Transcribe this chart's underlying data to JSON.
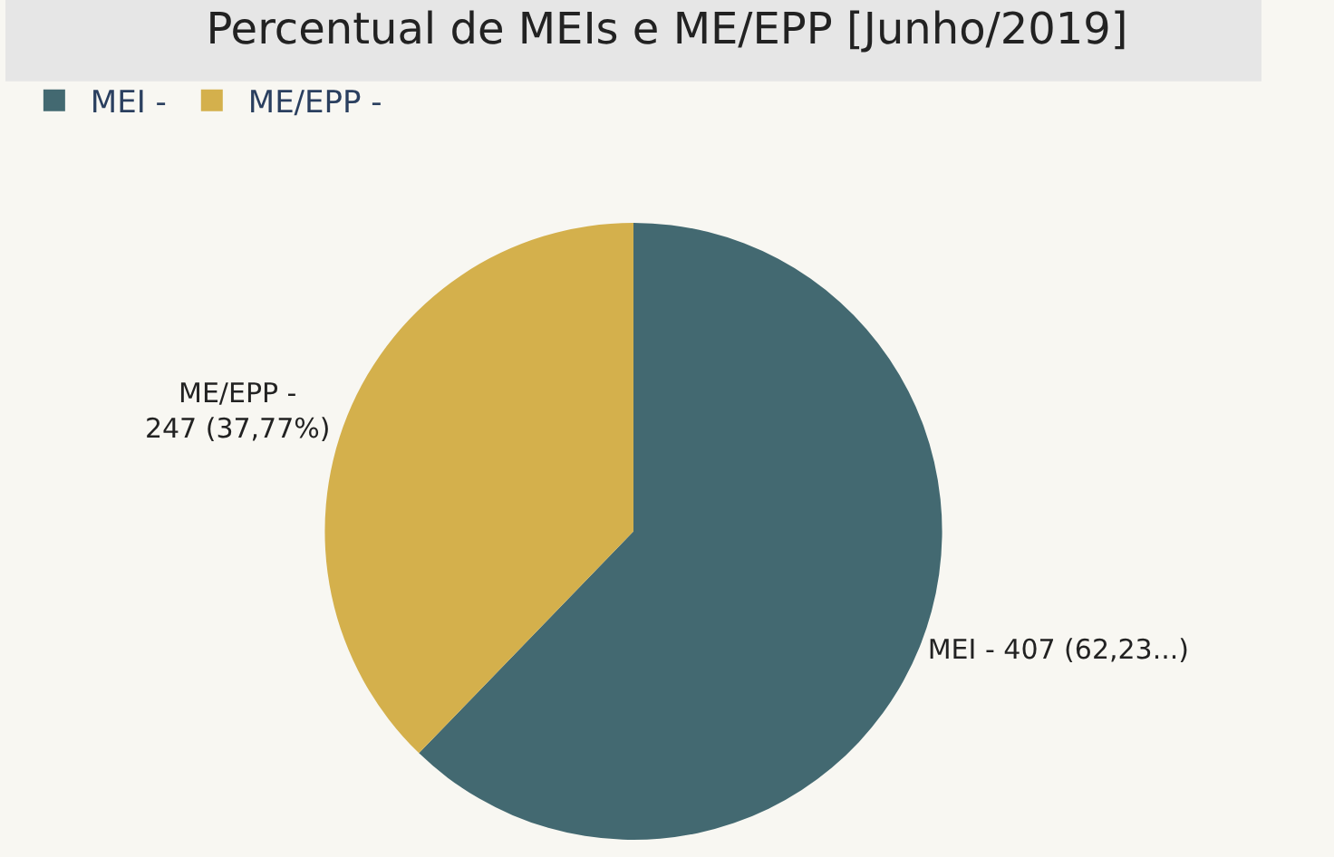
{
  "chart_data": {
    "type": "pie",
    "title": "Percentual de MEIs e ME/EPP [Junho/2019]",
    "categories": [
      "MEI -",
      "ME/EPP -"
    ],
    "values": [
      407,
      247
    ],
    "colors": [
      "#436971",
      "#d4b04c"
    ],
    "value_labels": [
      "MEI - 407 (62,23...)",
      "ME/EPP -\n247 (37,77%)"
    ],
    "legend": "top left"
  }
}
